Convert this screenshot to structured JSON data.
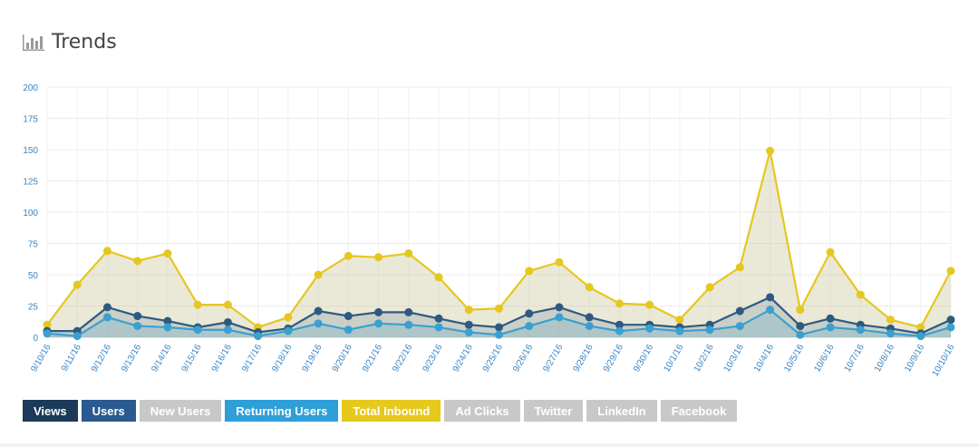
{
  "header": {
    "title": "Trends",
    "icon": "bar-chart-icon"
  },
  "chart_data": {
    "type": "line",
    "ylim": [
      0,
      200
    ],
    "yticks": [
      0,
      25,
      50,
      75,
      100,
      125,
      150,
      175,
      200
    ],
    "categories": [
      "9/10/16",
      "9/11/16",
      "9/12/16",
      "9/13/16",
      "9/14/16",
      "9/15/16",
      "9/16/16",
      "9/17/16",
      "9/18/16",
      "9/19/16",
      "9/20/16",
      "9/21/16",
      "9/22/16",
      "9/23/16",
      "9/24/16",
      "9/25/16",
      "9/26/16",
      "9/27/16",
      "9/28/16",
      "9/29/16",
      "9/30/16",
      "10/1/16",
      "10/2/16",
      "10/3/16",
      "10/4/16",
      "10/5/16",
      "10/6/16",
      "10/7/16",
      "10/8/16",
      "10/9/16",
      "10/10/16"
    ],
    "grid": true,
    "series": [
      {
        "name": "Total Inbound",
        "color": "#e5c720",
        "values": [
          10,
          42,
          69,
          61,
          67,
          26,
          26,
          8,
          16,
          50,
          65,
          64,
          67,
          48,
          22,
          23,
          53,
          60,
          40,
          27,
          26,
          14,
          40,
          56,
          149,
          22,
          68,
          34,
          14,
          8,
          53
        ]
      },
      {
        "name": "Users",
        "color": "#2e5a80",
        "values": [
          5,
          5,
          24,
          17,
          13,
          8,
          12,
          4,
          7,
          21,
          17,
          20,
          20,
          15,
          10,
          8,
          19,
          24,
          16,
          10,
          10,
          8,
          10,
          21,
          32,
          9,
          15,
          10,
          7,
          3,
          14
        ]
      },
      {
        "name": "Returning Users",
        "color": "#3aa0d0",
        "values": [
          3,
          1,
          16,
          9,
          8,
          6,
          6,
          1,
          5,
          11,
          6,
          11,
          10,
          8,
          4,
          2,
          9,
          16,
          9,
          5,
          7,
          5,
          6,
          9,
          22,
          2,
          8,
          6,
          3,
          1,
          8
        ]
      }
    ]
  },
  "legend": [
    {
      "label": "Views",
      "color": "#1c3a5a",
      "active": true
    },
    {
      "label": "Users",
      "color": "#2a5a8f",
      "active": true
    },
    {
      "label": "New Users",
      "color": "#c8c8c8",
      "active": false
    },
    {
      "label": "Returning Users",
      "color": "#2f9fd8",
      "active": true
    },
    {
      "label": "Total Inbound",
      "color": "#e7c81c",
      "active": true
    },
    {
      "label": "Ad Clicks",
      "color": "#c8c8c8",
      "active": false
    },
    {
      "label": "Twitter",
      "color": "#c8c8c8",
      "active": false
    },
    {
      "label": "LinkedIn",
      "color": "#c8c8c8",
      "active": false
    },
    {
      "label": "Facebook",
      "color": "#c8c8c8",
      "active": false
    }
  ]
}
